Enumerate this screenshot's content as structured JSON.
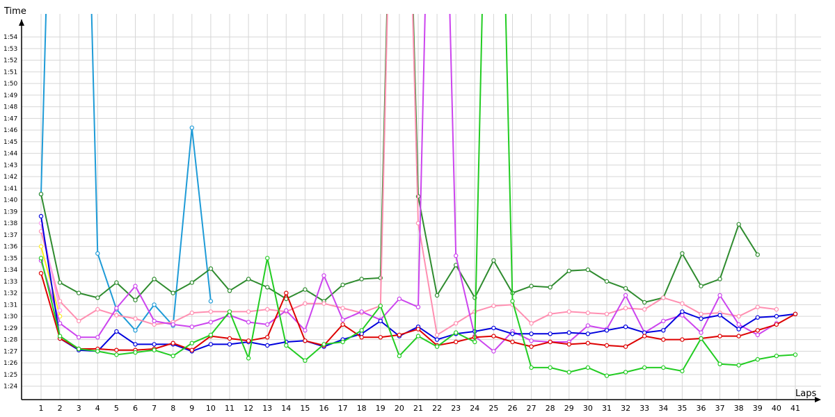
{
  "chart_data": {
    "type": "line",
    "xlabel": "Laps",
    "ylabel": "Time",
    "xlim": [
      1,
      41
    ],
    "ylim": [
      "1:23",
      "1:55"
    ],
    "grid": true,
    "x": [
      1,
      2,
      3,
      4,
      5,
      6,
      7,
      8,
      9,
      10,
      11,
      12,
      13,
      14,
      15,
      16,
      17,
      18,
      19,
      20,
      21,
      22,
      23,
      24,
      25,
      26,
      27,
      28,
      29,
      30,
      31,
      32,
      33,
      34,
      35,
      36,
      37,
      38,
      39,
      40,
      41
    ],
    "y_ticks": [
      "1:24",
      "1:25",
      "1:26",
      "1:27",
      "1:28",
      "1:29",
      "1:30",
      "1:31",
      "1:32",
      "1:33",
      "1:34",
      "1:35",
      "1:36",
      "1:37",
      "1:38",
      "1:39",
      "1:40",
      "1:41",
      "1:42",
      "1:43",
      "1:44",
      "1:45",
      "1:46",
      "1:47",
      "1:48",
      "1:49",
      "1:50",
      "1:51",
      "1:52",
      "1:53",
      "1:54"
    ],
    "series": [
      {
        "color": "#1e9bd7",
        "values": [
          100.5,
          160,
          160,
          95.4,
          90.6,
          88.8,
          91.0,
          89.2,
          106.2,
          91.3,
          null,
          null,
          null,
          null,
          null,
          null,
          null,
          null,
          null,
          null,
          null,
          null,
          null,
          null,
          null,
          null,
          null,
          null,
          null,
          null,
          null,
          null,
          null,
          null,
          null,
          null,
          null,
          null,
          null,
          null,
          null
        ]
      },
      {
        "color": "#ffee22",
        "values": [
          96.0,
          90.0,
          null,
          null,
          null,
          null,
          null,
          null,
          null,
          null,
          null,
          null,
          null,
          null,
          null,
          null,
          null,
          null,
          null,
          null,
          null,
          null,
          null,
          null,
          null,
          null,
          null,
          null,
          null,
          null,
          null,
          null,
          null,
          null,
          null,
          null,
          null,
          null,
          null,
          null,
          null
        ]
      },
      {
        "color": "#2e8b2e",
        "values": [
          100.5,
          92.9,
          92.0,
          91.6,
          92.9,
          91.4,
          93.2,
          92.0,
          92.9,
          94.1,
          92.2,
          93.2,
          92.5,
          91.5,
          92.3,
          91.3,
          92.7,
          93.2,
          93.3,
          160,
          100.3,
          91.8,
          94.4,
          91.6,
          94.8,
          92.0,
          92.6,
          92.5,
          93.9,
          94.0,
          93.0,
          92.4,
          91.2,
          91.6,
          95.4,
          92.6,
          93.2,
          97.9,
          95.3,
          null,
          null
        ]
      },
      {
        "color": "#ff8fb1",
        "values": [
          97.3,
          91.3,
          89.6,
          90.6,
          90.1,
          89.8,
          89.3,
          89.5,
          90.3,
          90.4,
          90.4,
          90.4,
          90.6,
          90.4,
          91.1,
          91.1,
          90.7,
          90.3,
          90.9,
          160,
          98.0,
          88.4,
          89.4,
          90.4,
          90.9,
          91.0,
          89.4,
          90.2,
          90.4,
          90.3,
          90.2,
          90.7,
          90.6,
          91.6,
          91.1,
          90.2,
          90.3,
          90.0,
          90.8,
          90.6,
          null
        ]
      },
      {
        "color": "#cc44ee",
        "values": [
          94.8,
          89.4,
          88.2,
          88.2,
          90.7,
          92.6,
          89.6,
          89.3,
          89.1,
          89.5,
          90.1,
          89.5,
          89.3,
          90.5,
          88.8,
          93.5,
          89.7,
          90.4,
          89.7,
          91.5,
          90.8,
          160,
          95.2,
          88.3,
          87.0,
          88.7,
          87.9,
          87.8,
          87.8,
          89.2,
          88.9,
          91.8,
          88.6,
          89.6,
          90.1,
          88.6,
          91.8,
          89.3,
          88.4,
          89.4,
          null
        ]
      },
      {
        "color": "#ff9af0",
        "values": [
          98.0,
          90.5,
          null,
          null,
          null,
          null,
          null,
          null,
          null,
          null,
          null,
          null,
          null,
          null,
          null,
          null,
          null,
          null,
          null,
          null,
          null,
          null,
          null,
          null,
          null,
          null,
          null,
          null,
          null,
          null,
          null,
          null,
          null,
          null,
          null,
          null,
          null,
          null,
          null,
          null,
          null
        ]
      },
      {
        "color": "#0000dd",
        "values": [
          98.6,
          88.1,
          87.1,
          87.0,
          88.7,
          87.6,
          87.6,
          87.6,
          87.0,
          87.6,
          87.6,
          87.8,
          87.5,
          87.8,
          87.9,
          87.4,
          88.0,
          88.5,
          89.6,
          88.3,
          89.1,
          88.0,
          88.5,
          88.7,
          89.0,
          88.5,
          88.5,
          88.5,
          88.6,
          88.5,
          88.8,
          89.1,
          88.6,
          88.8,
          90.4,
          89.8,
          90.1,
          88.9,
          89.9,
          90.0,
          90.2
        ]
      },
      {
        "color": "#dd0000",
        "values": [
          93.7,
          88.1,
          87.2,
          87.2,
          87.1,
          87.1,
          87.2,
          87.7,
          87.1,
          88.3,
          88.1,
          87.9,
          88.2,
          92.0,
          87.9,
          87.5,
          89.3,
          88.2,
          88.2,
          88.4,
          88.9,
          87.5,
          87.8,
          88.2,
          88.3,
          87.8,
          87.4,
          87.8,
          87.6,
          87.7,
          87.5,
          87.4,
          88.3,
          88.0,
          88.0,
          88.1,
          88.3,
          88.3,
          88.8,
          89.3,
          90.2
        ]
      },
      {
        "color": "#22cc22",
        "values": [
          95.0,
          88.3,
          87.2,
          87.0,
          86.7,
          86.9,
          87.1,
          86.6,
          87.7,
          88.4,
          90.4,
          86.4,
          95.0,
          87.5,
          86.2,
          87.6,
          87.8,
          88.8,
          90.9,
          86.6,
          88.3,
          87.4,
          88.6,
          87.8,
          160,
          91.3,
          85.6,
          85.6,
          85.2,
          85.6,
          84.9,
          85.2,
          85.6,
          85.6,
          85.3,
          88.1,
          85.9,
          85.8,
          86.3,
          86.6,
          86.7
        ]
      }
    ]
  }
}
